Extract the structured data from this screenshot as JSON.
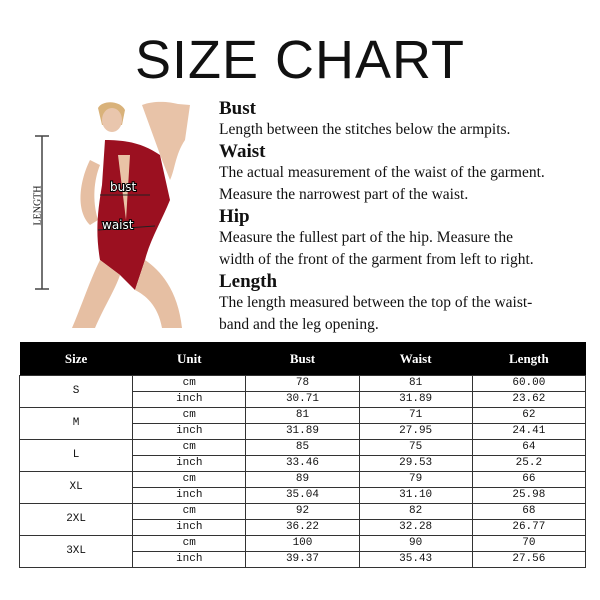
{
  "title": "SIZE CHART",
  "figure": {
    "length_label": "LENGTH",
    "bust_label": "bust",
    "waist_label": "waist",
    "garment_color": "#9b1020"
  },
  "definitions": [
    {
      "term": "Bust",
      "lines": [
        "Length between the stitches below the armpits."
      ]
    },
    {
      "term": "Waist",
      "lines": [
        "The actual measurement of the waist of the garment.",
        "Measure the narrowest part of the waist."
      ]
    },
    {
      "term": "Hip",
      "lines": [
        "Measure the fullest part of the  hip. Measure the",
        "width of the front of the garment from left to right."
      ]
    },
    {
      "term": "Length",
      "lines": [
        "The length measured between the top of the waist-",
        "band and the leg opening."
      ]
    }
  ],
  "table": {
    "headers": [
      "Size",
      "Unit",
      "Bust",
      "Waist",
      "Length"
    ],
    "rows": [
      {
        "size": "S",
        "cm": [
          "78",
          "81",
          "60.00"
        ],
        "inch": [
          "30.71",
          "31.89",
          "23.62"
        ]
      },
      {
        "size": "M",
        "cm": [
          "81",
          "71",
          "62"
        ],
        "inch": [
          "31.89",
          "27.95",
          "24.41"
        ]
      },
      {
        "size": "L",
        "cm": [
          "85",
          "75",
          "64"
        ],
        "inch": [
          "33.46",
          "29.53",
          "25.2"
        ]
      },
      {
        "size": "XL",
        "cm": [
          "89",
          "79",
          "66"
        ],
        "inch": [
          "35.04",
          "31.10",
          "25.98"
        ]
      },
      {
        "size": "2XL",
        "cm": [
          "92",
          "82",
          "68"
        ],
        "inch": [
          "36.22",
          "32.28",
          "26.77"
        ]
      },
      {
        "size": "3XL",
        "cm": [
          "100",
          "90",
          "70"
        ],
        "inch": [
          "39.37",
          "35.43",
          "27.56"
        ]
      }
    ],
    "units": [
      "cm",
      "inch"
    ]
  }
}
